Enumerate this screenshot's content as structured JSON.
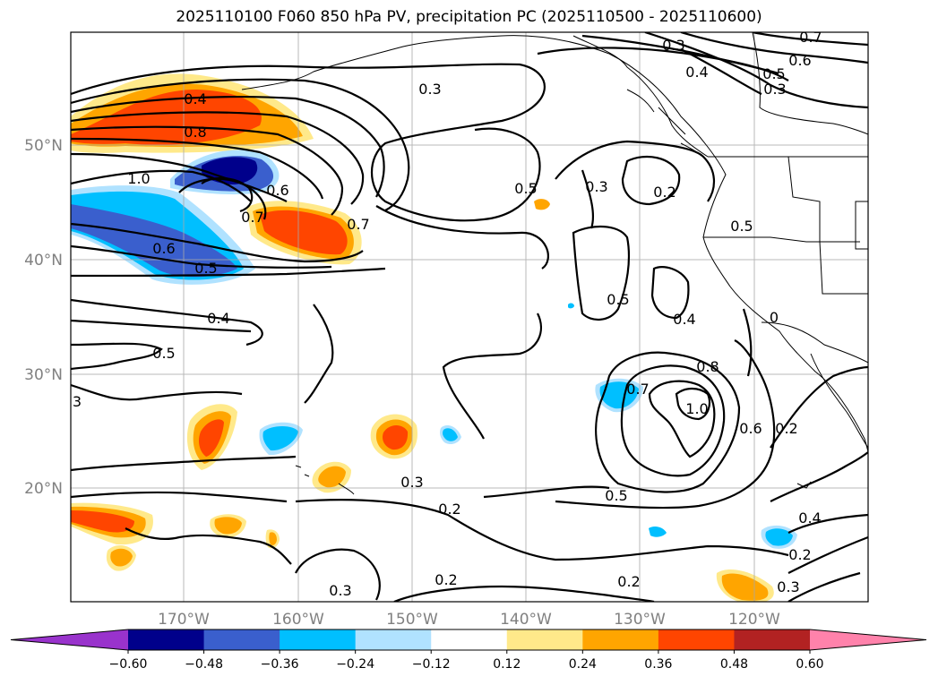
{
  "title": "2025110100 F060 850 hPa PV, precipitation PC (2025110500 - 2025110600)",
  "map": {
    "lat_ticks": [
      "50°N",
      "40°N",
      "30°N",
      "20°N"
    ],
    "lon_ticks": [
      "170°W",
      "160°W",
      "150°W",
      "140°W",
      "130°W",
      "120°W"
    ]
  },
  "contour_labels": [
    "0.4",
    "0.8",
    "1.0",
    "0.6",
    "0.7",
    "0.7",
    "0.6",
    "0.5",
    "0.4",
    "0.5",
    "3",
    "0.3",
    "0.5",
    "0.3",
    "0.2",
    "0.3",
    "0.4",
    "0.5",
    "0.6",
    "0.7",
    "0.3",
    "0.5",
    "0.5",
    "0.4",
    "0.8",
    "1.0",
    "0.7",
    "0.6",
    "0.2",
    "0",
    "0.5",
    "0.4",
    "0.2",
    "0.3",
    "0.2",
    "0.3",
    "0.2",
    "0.2",
    "0.3"
  ],
  "colorbar": {
    "colors": [
      "#9933cc",
      "#00008b",
      "#3a5fcd",
      "#00bfff",
      "#b0e2ff",
      "#ffffff",
      "#ffe98a",
      "#ffa500",
      "#ff4500",
      "#b22222",
      "#ff82ab"
    ],
    "tick_labels": [
      "−0.60",
      "−0.48",
      "−0.36",
      "−0.24",
      "−0.12",
      "0.12",
      "0.24",
      "0.36",
      "0.48",
      "0.60"
    ]
  }
}
